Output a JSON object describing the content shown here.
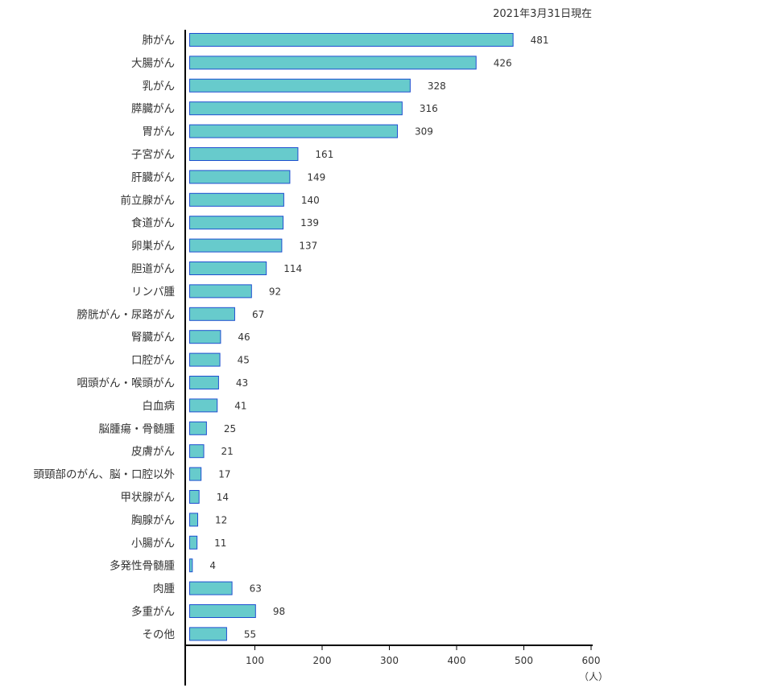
{
  "chart_data": {
    "type": "bar",
    "orientation": "horizontal",
    "title": "",
    "date_note": "2021年3月31日現在",
    "xlabel": "",
    "unit": "（人）",
    "xlim": [
      0,
      600
    ],
    "xticks": [
      100,
      200,
      300,
      400,
      500,
      600
    ],
    "grid": false,
    "bar_color": "#67CBCC",
    "bar_edge_color": "#1F4FD0",
    "categories": [
      "肺がん",
      "大腸がん",
      "乳がん",
      "膵臓がん",
      "胃がん",
      "子宮がん",
      "肝臓がん",
      "前立腺がん",
      "食道がん",
      "卵巣がん",
      "胆道がん",
      "リンパ腫",
      "膀胱がん・尿路がん",
      "腎臓がん",
      "口腔がん",
      "咽頭がん・喉頭がん",
      "白血病",
      "脳腫瘍・骨髄腫",
      "皮膚がん",
      "頭頸部のがん、脳・口腔以外",
      "甲状腺がん",
      "胸腺がん",
      "小腸がん",
      "多発性骨髄腫",
      "肉腫",
      "多重がん",
      "その他"
    ],
    "values": [
      481,
      426,
      328,
      316,
      309,
      161,
      149,
      140,
      139,
      137,
      114,
      92,
      67,
      46,
      45,
      43,
      41,
      25,
      21,
      17,
      14,
      12,
      11,
      4,
      63,
      98,
      55
    ]
  }
}
